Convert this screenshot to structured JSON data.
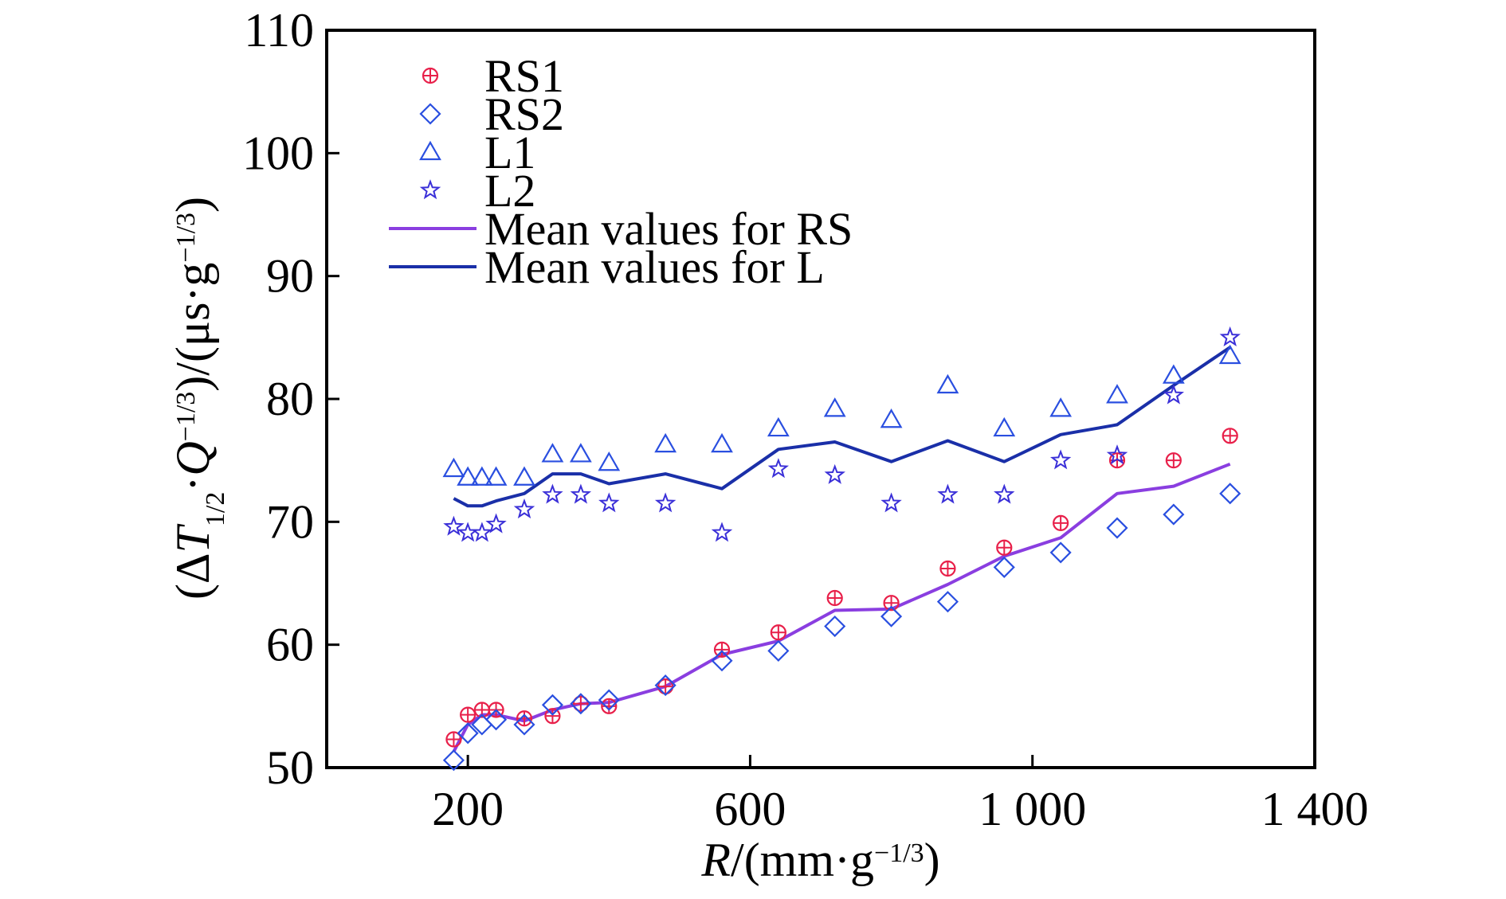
{
  "chart_data": {
    "type": "scatter",
    "xlabel": {
      "prefix": "R",
      "unit_open": "/(mm·g",
      "exp": "−1/3",
      "unit_close": ")"
    },
    "ylabel": {
      "open": "(Δ",
      "var": "T",
      "sub": "1/2",
      "mid": "·",
      "var2": "Q",
      "exp1": "−1/3",
      "unit": ")/(μs·g",
      "exp2": "−1/3",
      "close": ")"
    },
    "xlim": [
      0,
      1400
    ],
    "ylim": [
      50,
      110
    ],
    "x_ticks": [
      200,
      600,
      1000,
      1400
    ],
    "x_tick_labels": [
      "200",
      "600",
      "1 000",
      "1 400"
    ],
    "y_ticks": [
      50,
      60,
      70,
      80,
      90,
      100,
      110
    ],
    "y_tick_labels": [
      "50",
      "60",
      "70",
      "80",
      "90",
      "100",
      "110"
    ],
    "grid": false,
    "legend_position": "top-left",
    "series": [
      {
        "name": "RS1",
        "marker": "circle-plus",
        "color": "#e8204a",
        "points": [
          [
            180,
            52.3
          ],
          [
            200,
            54.3
          ],
          [
            220,
            54.7
          ],
          [
            240,
            54.7
          ],
          [
            280,
            54.0
          ],
          [
            320,
            54.2
          ],
          [
            360,
            55.2
          ],
          [
            400,
            55.0
          ],
          [
            480,
            56.6
          ],
          [
            560,
            59.6
          ],
          [
            640,
            61.0
          ],
          [
            720,
            63.8
          ],
          [
            800,
            63.4
          ],
          [
            880,
            66.2
          ],
          [
            960,
            67.9
          ],
          [
            1040,
            69.9
          ],
          [
            1120,
            75.0
          ],
          [
            1200,
            75.0
          ],
          [
            1280,
            77.0
          ]
        ]
      },
      {
        "name": "RS2",
        "marker": "diamond",
        "color": "#2a4fe0",
        "points": [
          [
            180,
            50.6
          ],
          [
            200,
            52.8
          ],
          [
            220,
            53.5
          ],
          [
            240,
            53.9
          ],
          [
            280,
            53.5
          ],
          [
            320,
            55.1
          ],
          [
            360,
            55.2
          ],
          [
            400,
            55.5
          ],
          [
            480,
            56.7
          ],
          [
            560,
            58.7
          ],
          [
            640,
            59.5
          ],
          [
            720,
            61.5
          ],
          [
            800,
            62.3
          ],
          [
            880,
            63.5
          ],
          [
            960,
            66.3
          ],
          [
            1040,
            67.5
          ],
          [
            1120,
            69.5
          ],
          [
            1200,
            70.6
          ],
          [
            1280,
            72.3
          ]
        ]
      },
      {
        "name": "L1",
        "marker": "triangle",
        "color": "#2a4fe0",
        "points": [
          [
            180,
            74.3
          ],
          [
            200,
            73.6
          ],
          [
            220,
            73.6
          ],
          [
            240,
            73.6
          ],
          [
            280,
            73.6
          ],
          [
            320,
            75.5
          ],
          [
            360,
            75.5
          ],
          [
            400,
            74.8
          ],
          [
            480,
            76.3
          ],
          [
            560,
            76.3
          ],
          [
            640,
            77.6
          ],
          [
            720,
            79.2
          ],
          [
            800,
            78.3
          ],
          [
            880,
            81.1
          ],
          [
            960,
            77.6
          ],
          [
            1040,
            79.2
          ],
          [
            1120,
            80.3
          ],
          [
            1200,
            81.9
          ],
          [
            1280,
            83.5
          ]
        ]
      },
      {
        "name": "L2",
        "marker": "star",
        "color": "#3a2fd8",
        "points": [
          [
            180,
            69.6
          ],
          [
            200,
            69.1
          ],
          [
            220,
            69.1
          ],
          [
            240,
            69.8
          ],
          [
            280,
            71.0
          ],
          [
            320,
            72.2
          ],
          [
            360,
            72.2
          ],
          [
            400,
            71.5
          ],
          [
            480,
            71.5
          ],
          [
            560,
            69.1
          ],
          [
            640,
            74.3
          ],
          [
            720,
            73.8
          ],
          [
            800,
            71.5
          ],
          [
            880,
            72.2
          ],
          [
            960,
            72.2
          ],
          [
            1040,
            75.0
          ],
          [
            1120,
            75.4
          ],
          [
            1200,
            80.3
          ],
          [
            1280,
            85.0
          ]
        ]
      },
      {
        "name": "Mean values for RS",
        "marker": "line",
        "color": "#8a3ee0",
        "points": [
          [
            180,
            51.3
          ],
          [
            200,
            53.5
          ],
          [
            220,
            54.3
          ],
          [
            240,
            54.3
          ],
          [
            280,
            53.8
          ],
          [
            320,
            54.7
          ],
          [
            360,
            55.2
          ],
          [
            400,
            55.3
          ],
          [
            480,
            56.6
          ],
          [
            560,
            59.2
          ],
          [
            640,
            60.3
          ],
          [
            720,
            62.8
          ],
          [
            800,
            62.9
          ],
          [
            880,
            64.9
          ],
          [
            960,
            67.2
          ],
          [
            1040,
            68.7
          ],
          [
            1120,
            72.3
          ],
          [
            1200,
            72.9
          ],
          [
            1280,
            74.7
          ]
        ]
      },
      {
        "name": "Mean values for L",
        "marker": "line",
        "color": "#1a2fa8",
        "points": [
          [
            180,
            71.9
          ],
          [
            200,
            71.3
          ],
          [
            220,
            71.3
          ],
          [
            240,
            71.7
          ],
          [
            280,
            72.3
          ],
          [
            320,
            73.9
          ],
          [
            360,
            73.9
          ],
          [
            400,
            73.1
          ],
          [
            480,
            73.9
          ],
          [
            560,
            72.7
          ],
          [
            640,
            75.9
          ],
          [
            720,
            76.5
          ],
          [
            800,
            74.9
          ],
          [
            880,
            76.6
          ],
          [
            960,
            74.9
          ],
          [
            1040,
            77.1
          ],
          [
            1120,
            77.9
          ],
          [
            1200,
            81.1
          ],
          [
            1280,
            84.2
          ]
        ]
      }
    ]
  }
}
